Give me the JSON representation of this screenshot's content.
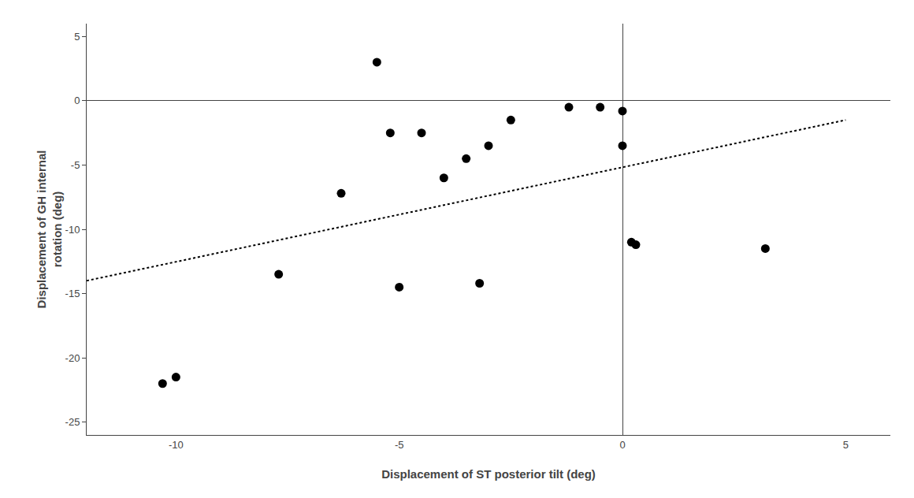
{
  "chart_data": {
    "type": "scatter",
    "xlabel": "Displacement of ST posterior tilt (deg)",
    "ylabel": "Displacement of GH internal\nrotation (deg)",
    "series": [
      {
        "type": "scatter",
        "color": "#000000",
        "marker": "circle",
        "x": [
          -5.5,
          -10.3,
          -7.7,
          -5.2,
          -6.3,
          -4.5,
          -3.5,
          -4.0,
          -3.0,
          -2.5,
          -1.2,
          -0.5,
          0.0,
          0.2,
          3.2,
          -5.0,
          -3.2,
          0.3,
          0.0,
          -10.0
        ],
        "values": [
          3.0,
          -22.0,
          -13.5,
          -2.5,
          -7.2,
          -2.5,
          -4.5,
          -6.0,
          -3.5,
          -1.5,
          -0.5,
          -0.5,
          -0.8,
          -11.0,
          -11.5,
          -14.5,
          -14.2,
          -11.2,
          -3.5,
          -21.5
        ]
      },
      {
        "type": "line",
        "color": "#000000",
        "line_style": "dotted",
        "x": [
          -12,
          5
        ],
        "values": [
          -14,
          -1.5
        ]
      }
    ],
    "xlim": [
      -12,
      6
    ],
    "ylim": [
      -26,
      6
    ],
    "xticks": [
      -10,
      -5,
      0,
      5
    ],
    "yticks": [
      5,
      0,
      -5,
      -10,
      -15,
      -20,
      -25
    ],
    "grid": false
  }
}
